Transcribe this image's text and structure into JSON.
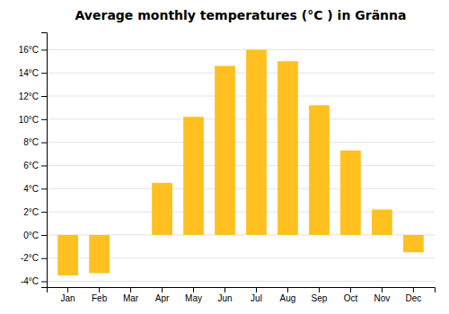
{
  "chart_data": {
    "type": "bar",
    "title": "Average monthly temperatures (°C ) in Gränna",
    "categories": [
      "Jan",
      "Feb",
      "Mar",
      "Apr",
      "May",
      "Jun",
      "Jul",
      "Aug",
      "Sep",
      "Oct",
      "Nov",
      "Dec"
    ],
    "values": [
      -3.5,
      -3.3,
      0.0,
      4.5,
      10.2,
      14.6,
      16.0,
      15.0,
      11.2,
      7.3,
      2.2,
      -1.5
    ],
    "color": "#FFC020",
    "ylim": [
      -4.5,
      17.5
    ],
    "yticks": [
      {
        "value": -4,
        "label": "-4°C"
      },
      {
        "value": -2,
        "label": "-2°C"
      },
      {
        "value": 0,
        "label": "0°C"
      },
      {
        "value": 2,
        "label": "2°C"
      },
      {
        "value": 4,
        "label": "4°C"
      },
      {
        "value": 6,
        "label": "6°C"
      },
      {
        "value": 8,
        "label": "8°C"
      },
      {
        "value": 10,
        "label": "10°C"
      },
      {
        "value": 12,
        "label": "12°C"
      },
      {
        "value": 14,
        "label": "14°C"
      },
      {
        "value": 16,
        "label": "16°C"
      }
    ],
    "grid": true
  }
}
